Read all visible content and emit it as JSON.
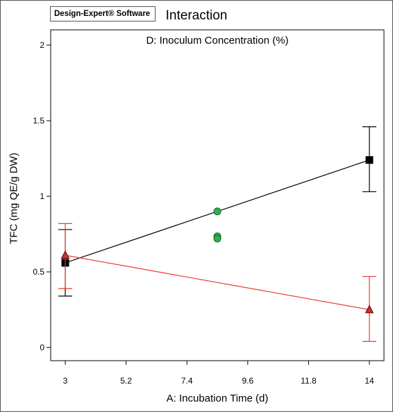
{
  "software_badge": "Design-Expert® Software",
  "chart_data": {
    "type": "line",
    "title": "Interaction",
    "subtitle": "D: Inoculum Concentration (%)",
    "xlabel": "A: Incubation Time (d)",
    "ylabel": "TFC (mg QE/g DW)",
    "xlim": [
      3,
      14
    ],
    "ylim": [
      0,
      2
    ],
    "x_ticks": [
      3,
      5.2,
      7.4,
      9.6,
      11.8,
      14
    ],
    "x_tick_labels": [
      "3",
      "5.2",
      "7.4",
      "9.6",
      "11.8",
      "14"
    ],
    "y_ticks": [
      0,
      0.5,
      1,
      1.5,
      2
    ],
    "y_tick_labels": [
      "0",
      "0.5",
      "1",
      "1.5",
      "2"
    ],
    "grid": false,
    "series": [
      {
        "marker": "square",
        "color": "#000000",
        "x": [
          3,
          14
        ],
        "y": [
          0.56,
          1.24
        ],
        "error_low": [
          0.34,
          1.03
        ],
        "error_high": [
          0.78,
          1.46
        ]
      },
      {
        "marker": "triangle",
        "color": "#e53b2c",
        "x": [
          3,
          14
        ],
        "y": [
          0.61,
          0.25
        ],
        "error_low": [
          0.39,
          0.04
        ],
        "error_high": [
          0.82,
          0.47
        ]
      }
    ],
    "points": {
      "marker": "circle",
      "color": "#2eb34a",
      "x": [
        8.5,
        8.5,
        8.5
      ],
      "y": [
        0.9,
        0.735,
        0.72
      ]
    }
  }
}
